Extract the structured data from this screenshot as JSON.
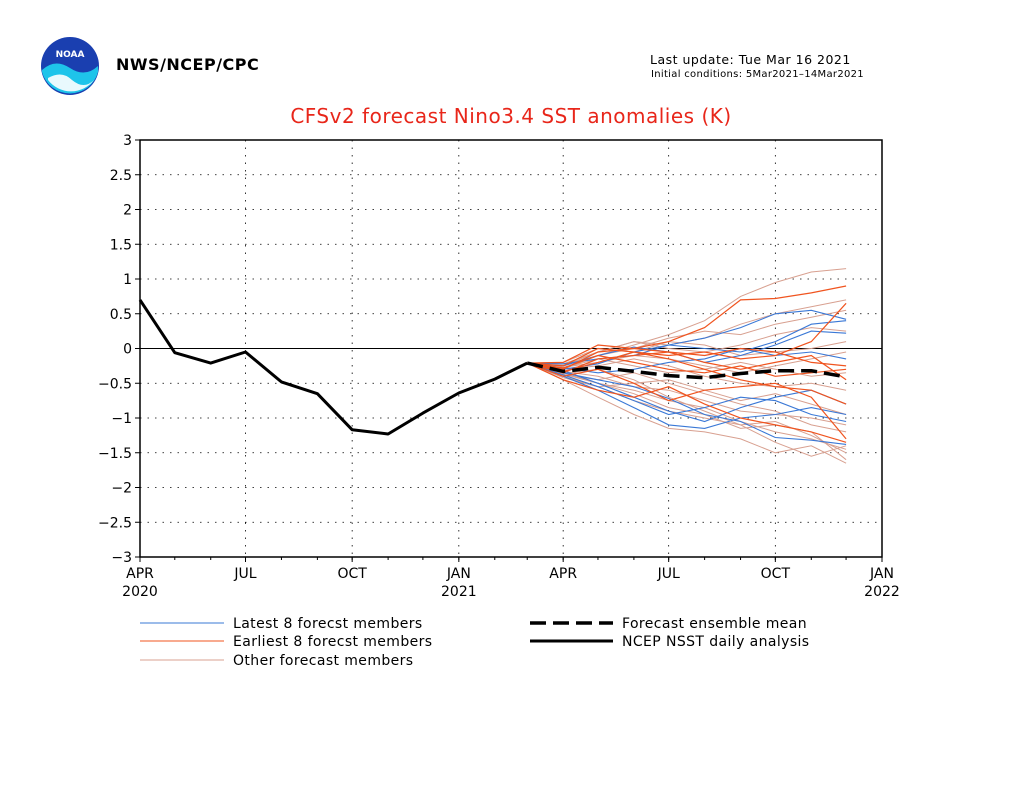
{
  "header": {
    "org": "NWS/NCEP/CPC",
    "last_update": "Last update: Tue Mar 16 2021",
    "initial_conditions": "Initial conditions: 5Mar2021–14Mar2021",
    "logo_text": "NOAA"
  },
  "colors": {
    "title": "#e8261a",
    "latest": "#3a78d6",
    "earliest": "#f0541f",
    "other": "#d8a090",
    "mean": "#000000",
    "analysis": "#000000"
  },
  "chart_data": {
    "type": "line",
    "title": "CFSv2 forecast Nino3.4 SST anomalies (K)",
    "xlabel": "",
    "ylabel": "",
    "ylim": [
      -3,
      3
    ],
    "xlim": [
      "2020-04",
      "2022-01"
    ],
    "grid": true,
    "zero_line": true,
    "y_ticks": [
      "3",
      "2.5",
      "2",
      "1.5",
      "1",
      "0.5",
      "0",
      "−0.5",
      "−1",
      "−1.5",
      "−2",
      "−2.5",
      "−3"
    ],
    "y_tick_values": [
      3,
      2.5,
      2,
      1.5,
      1,
      0.5,
      0,
      -0.5,
      -1,
      -1.5,
      -2,
      -2.5,
      -3
    ],
    "x_ticks": [
      {
        "date": "2020-04",
        "label": "APR",
        "year": "2020"
      },
      {
        "date": "2020-07",
        "label": "JUL",
        "year": ""
      },
      {
        "date": "2020-10",
        "label": "OCT",
        "year": ""
      },
      {
        "date": "2021-01",
        "label": "JAN",
        "year": "2021"
      },
      {
        "date": "2021-04",
        "label": "APR",
        "year": ""
      },
      {
        "date": "2021-07",
        "label": "JUL",
        "year": ""
      },
      {
        "date": "2021-10",
        "label": "OCT",
        "year": ""
      },
      {
        "date": "2022-01",
        "label": "JAN",
        "year": "2022"
      }
    ],
    "analysis": {
      "name": "NCEP NSST daily analysis",
      "x": [
        "2020-04-01",
        "2020-05-01",
        "2020-06-01",
        "2020-07-01",
        "2020-08-01",
        "2020-09-01",
        "2020-10-01",
        "2020-11-01",
        "2020-12-01",
        "2021-01-01",
        "2021-02-01",
        "2021-03-01"
      ],
      "y": [
        0.7,
        -0.06,
        -0.21,
        -0.05,
        -0.48,
        -0.65,
        -1.17,
        -1.23,
        -0.93,
        -0.64,
        -0.44,
        -0.21
      ]
    },
    "ensemble_mean": {
      "name": "Forecast ensemble mean",
      "x": [
        "2021-03-01",
        "2021-04-01",
        "2021-05-01",
        "2021-06-01",
        "2021-07-01",
        "2021-08-01",
        "2021-09-01",
        "2021-10-01",
        "2021-11-01",
        "2021-12-01"
      ],
      "y": [
        -0.21,
        -0.33,
        -0.27,
        -0.33,
        -0.39,
        -0.42,
        -0.36,
        -0.32,
        -0.32,
        -0.41
      ]
    },
    "member_x": [
      "2021-03-01",
      "2021-04-01",
      "2021-05-01",
      "2021-06-01",
      "2021-07-01",
      "2021-08-01",
      "2021-09-01",
      "2021-10-01",
      "2021-11-01",
      "2021-12-01"
    ],
    "latest_members": {
      "name": "Latest 8 forecst members",
      "y": [
        [
          -0.21,
          -0.35,
          -0.45,
          -0.55,
          -0.72,
          -0.95,
          -1.05,
          -1.28,
          -1.32,
          -1.38
        ],
        [
          -0.21,
          -0.3,
          -0.22,
          -0.05,
          0.05,
          0.15,
          0.3,
          0.5,
          0.55,
          0.42
        ],
        [
          -0.21,
          -0.4,
          -0.6,
          -0.85,
          -1.1,
          -1.15,
          -1.0,
          -0.95,
          -0.85,
          -0.95
        ],
        [
          -0.21,
          -0.25,
          -0.1,
          0.02,
          -0.05,
          -0.2,
          -0.1,
          0.05,
          0.25,
          0.22
        ],
        [
          -0.21,
          -0.32,
          -0.5,
          -0.7,
          -0.9,
          -1.05,
          -0.85,
          -0.7,
          -0.6,
          -0.8
        ],
        [
          -0.21,
          -0.28,
          -0.35,
          -0.3,
          -0.2,
          -0.15,
          0.0,
          -0.1,
          -0.05,
          -0.15
        ],
        [
          -0.21,
          -0.38,
          -0.55,
          -0.75,
          -0.95,
          -0.85,
          -0.7,
          -0.75,
          -0.95,
          -1.05
        ],
        [
          -0.21,
          -0.22,
          -0.15,
          -0.1,
          0.05,
          0.0,
          -0.05,
          0.1,
          0.35,
          0.4
        ]
      ]
    },
    "earliest_members": {
      "name": "Earliest 8 forecst members",
      "y": [
        [
          -0.21,
          -0.3,
          -0.05,
          0.0,
          0.1,
          0.3,
          0.7,
          0.72,
          0.8,
          0.9
        ],
        [
          -0.21,
          -0.35,
          -0.15,
          -0.1,
          -0.05,
          -0.2,
          -0.3,
          -0.2,
          -0.1,
          -0.45
        ],
        [
          -0.21,
          -0.4,
          -0.3,
          -0.5,
          -0.75,
          -0.6,
          -0.55,
          -0.5,
          -0.7,
          -1.3
        ],
        [
          -0.21,
          -0.25,
          0.0,
          -0.05,
          -0.1,
          -0.05,
          -0.15,
          -0.1,
          0.1,
          0.65
        ],
        [
          -0.21,
          -0.45,
          -0.6,
          -0.7,
          -0.55,
          -0.8,
          -1.0,
          -1.1,
          -1.2,
          -1.35
        ],
        [
          -0.21,
          -0.28,
          -0.1,
          -0.2,
          -0.3,
          -0.35,
          -0.25,
          -0.4,
          -0.35,
          -0.3
        ],
        [
          -0.21,
          -0.33,
          -0.2,
          -0.05,
          -0.15,
          -0.3,
          -0.45,
          -0.55,
          -0.6,
          -0.8
        ],
        [
          -0.21,
          -0.2,
          0.05,
          0.0,
          -0.05,
          -0.1,
          0.0,
          -0.05,
          -0.2,
          -0.25
        ]
      ]
    },
    "other_members": {
      "name": "Other forecast members",
      "y": [
        [
          -0.21,
          -0.3,
          -0.1,
          0.05,
          0.2,
          0.4,
          0.75,
          0.95,
          1.1,
          1.15
        ],
        [
          -0.21,
          -0.45,
          -0.7,
          -0.95,
          -1.15,
          -1.2,
          -1.3,
          -1.5,
          -1.4,
          -1.65
        ],
        [
          -0.21,
          -0.35,
          -0.5,
          -0.6,
          -0.75,
          -0.85,
          -1.05,
          -1.2,
          -1.3,
          -1.45
        ],
        [
          -0.21,
          -0.25,
          -0.05,
          0.1,
          0.05,
          0.15,
          0.35,
          0.5,
          0.6,
          0.7
        ],
        [
          -0.21,
          -0.4,
          -0.55,
          -0.75,
          -0.9,
          -1.0,
          -1.1,
          -1.05,
          -1.25,
          -1.5
        ],
        [
          -0.21,
          -0.3,
          -0.25,
          -0.15,
          -0.25,
          -0.4,
          -0.5,
          -0.55,
          -0.5,
          -0.6
        ],
        [
          -0.21,
          -0.22,
          -0.05,
          0.1,
          0.0,
          -0.05,
          0.05,
          0.2,
          0.3,
          0.25
        ],
        [
          -0.21,
          -0.38,
          -0.45,
          -0.35,
          -0.5,
          -0.65,
          -0.8,
          -0.9,
          -1.1,
          -1.2
        ],
        [
          -0.21,
          -0.28,
          -0.15,
          -0.25,
          -0.35,
          -0.3,
          -0.2,
          -0.3,
          -0.4,
          -0.35
        ],
        [
          -0.21,
          -0.33,
          -0.4,
          -0.55,
          -0.6,
          -0.75,
          -0.9,
          -0.95,
          -1.0,
          -1.1
        ],
        [
          -0.21,
          -0.2,
          0.0,
          -0.05,
          0.1,
          0.05,
          -0.1,
          -0.05,
          0.0,
          0.1
        ],
        [
          -0.21,
          -0.36,
          -0.3,
          -0.45,
          -0.7,
          -0.9,
          -1.1,
          -1.35,
          -1.55,
          -1.4
        ],
        [
          -0.21,
          -0.27,
          -0.2,
          -0.1,
          -0.15,
          -0.25,
          -0.35,
          -0.25,
          -0.15,
          -0.05
        ],
        [
          -0.21,
          -0.42,
          -0.55,
          -0.5,
          -0.45,
          -0.6,
          -0.75,
          -0.65,
          -0.8,
          -0.95
        ],
        [
          -0.21,
          -0.24,
          -0.1,
          0.0,
          0.15,
          0.25,
          0.2,
          0.35,
          0.45,
          0.55
        ],
        [
          -0.21,
          -0.37,
          -0.5,
          -0.65,
          -0.85,
          -0.95,
          -1.15,
          -1.1,
          -1.2,
          -1.6
        ]
      ]
    },
    "legend": [
      {
        "label": "Latest 8 forecst members",
        "style": "latest"
      },
      {
        "label": "Earliest 8 forecst members",
        "style": "earliest"
      },
      {
        "label": "Other forecast members",
        "style": "other"
      },
      {
        "label": "Forecast ensemble mean",
        "style": "mean"
      },
      {
        "label": "NCEP NSST daily analysis",
        "style": "analysis"
      }
    ]
  }
}
